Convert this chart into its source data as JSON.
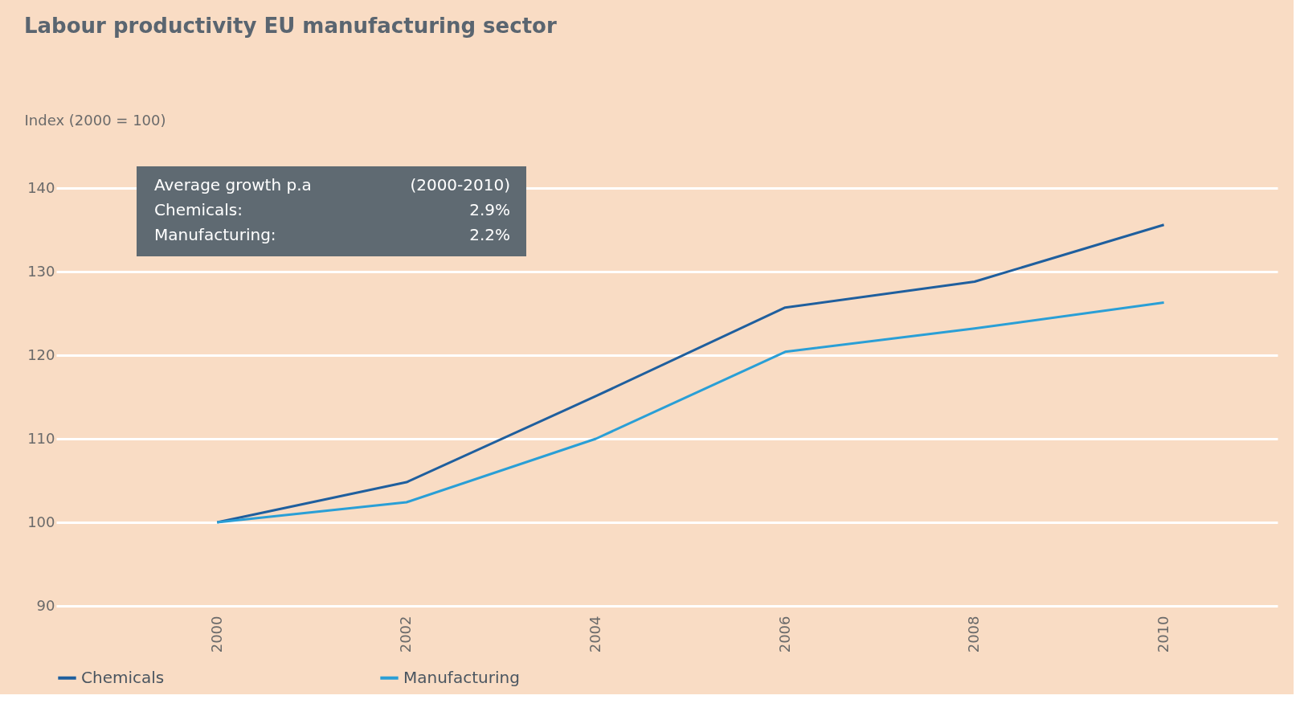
{
  "chart_data": {
    "type": "line",
    "title": "Labour productivity EU manufacturing sector",
    "ylabel": "Index (2000 = 100)",
    "x": [
      2000,
      2002,
      2004,
      2006,
      2008,
      2010
    ],
    "series": [
      {
        "name": "Chemicals",
        "color": "#1f5f9e",
        "values": [
          100,
          104.8,
          115.1,
          125.7,
          128.8,
          135.6
        ]
      },
      {
        "name": "Manufacturing",
        "color": "#2a9fd6",
        "values": [
          100,
          102.4,
          110.0,
          120.4,
          123.2,
          126.3
        ]
      }
    ],
    "xlim": [
      1998.3,
      2011.2
    ],
    "xticks": [
      2000,
      2002,
      2004,
      2006,
      2008,
      2010
    ],
    "ylim": [
      90,
      140
    ],
    "yticks": [
      90,
      100,
      110,
      120,
      130,
      140
    ],
    "grid": "y",
    "legend": "bottom",
    "marker": "none",
    "line_style": "solid",
    "annotations": [
      "Average growth p.a",
      "(2000-2010)",
      "Chemicals:",
      "2.9%",
      "Manufacturing:",
      "2.2%"
    ]
  }
}
